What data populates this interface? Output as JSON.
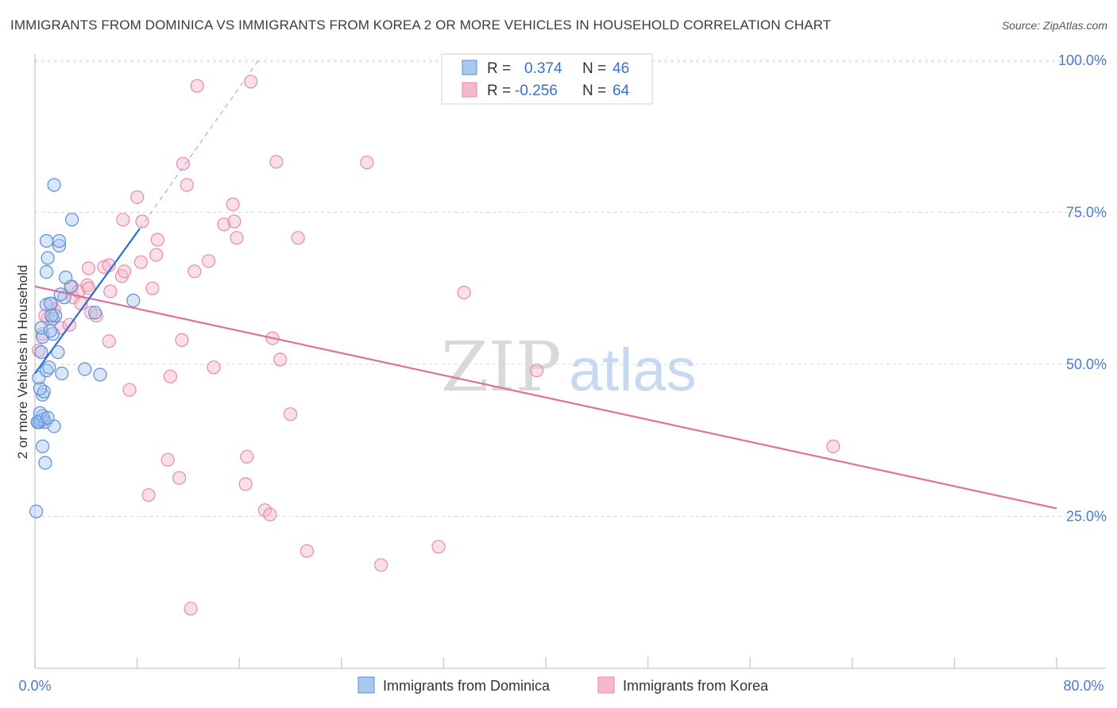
{
  "title": "IMMIGRANTS FROM DOMINICA VS IMMIGRANTS FROM KOREA 2 OR MORE VEHICLES IN HOUSEHOLD CORRELATION CHART",
  "source": "Source: ZipAtlas.com",
  "watermark": {
    "zip": "ZIP",
    "atlas": "atlas"
  },
  "colors": {
    "dominica_fill": "#a8c8f0",
    "dominica_stroke": "#5b8fd8",
    "dominica_line": "#2b6fd6",
    "korea_fill": "#f6b8cb",
    "korea_stroke": "#e88aa8",
    "korea_line": "#e07098",
    "tick_text": "#4a7bd0",
    "grid": "#d8d8d8"
  },
  "stats_legend": [
    {
      "r_label": "R =",
      "r_value": "0.374",
      "n_label": "N =",
      "n_value": "46",
      "series": "dominica"
    },
    {
      "r_label": "R =",
      "r_value": "-0.256",
      "n_label": "N =",
      "n_value": "64",
      "series": "korea"
    }
  ],
  "chart_data": {
    "type": "scatter",
    "title": "IMMIGRANTS FROM DOMINICA VS IMMIGRANTS FROM KOREA 2 OR MORE VEHICLES IN HOUSEHOLD CORRELATION CHART",
    "xlabel": "",
    "ylabel": "2 or more Vehicles in Household",
    "xlim": [
      0,
      80
    ],
    "ylim": [
      0,
      105
    ],
    "x_tick_labels": [
      "0.0%",
      "80.0%"
    ],
    "y_ticks": [
      25,
      50,
      75,
      100
    ],
    "y_tick_labels": [
      "25.0%",
      "50.0%",
      "75.0%",
      "100.0%"
    ],
    "grid": true,
    "legend_position": "bottom",
    "series": [
      {
        "name": "Immigrants from Dominica",
        "color": "#5b8fd8",
        "trend": {
          "x": [
            0,
            8.2
          ],
          "y": [
            48.5,
            72.3
          ],
          "dashed_extension": {
            "x": [
              8.2,
              17.5
            ],
            "y": [
              72.3,
              100
            ]
          }
        },
        "points": [
          [
            0.1,
            25.8
          ],
          [
            0.8,
            33.8
          ],
          [
            0.6,
            36.5
          ],
          [
            0.3,
            40.5
          ],
          [
            0.4,
            40.5
          ],
          [
            0.5,
            40.8
          ],
          [
            0.7,
            41.0
          ],
          [
            0.8,
            40.5
          ],
          [
            1.5,
            39.8
          ],
          [
            0.6,
            41.5
          ],
          [
            0.4,
            42.0
          ],
          [
            0.6,
            45.0
          ],
          [
            0.7,
            45.5
          ],
          [
            0.4,
            46.0
          ],
          [
            0.3,
            47.8
          ],
          [
            0.9,
            49.0
          ],
          [
            1.1,
            49.5
          ],
          [
            2.1,
            48.5
          ],
          [
            5.1,
            48.3
          ],
          [
            3.9,
            49.2
          ],
          [
            1.8,
            52.0
          ],
          [
            0.6,
            54.5
          ],
          [
            1.4,
            55.0
          ],
          [
            0.5,
            56.0
          ],
          [
            1.4,
            57.5
          ],
          [
            1.6,
            58.0
          ],
          [
            1.3,
            58.0
          ],
          [
            0.9,
            59.8
          ],
          [
            1.2,
            60.0
          ],
          [
            2.3,
            61.0
          ],
          [
            4.7,
            58.5
          ],
          [
            7.7,
            60.5
          ],
          [
            2.8,
            62.8
          ],
          [
            2.4,
            64.3
          ],
          [
            0.9,
            65.2
          ],
          [
            1.0,
            67.5
          ],
          [
            1.9,
            69.5
          ],
          [
            0.9,
            70.3
          ],
          [
            1.9,
            70.3
          ],
          [
            2.9,
            73.8
          ],
          [
            1.5,
            79.5
          ],
          [
            0.2,
            40.5
          ],
          [
            1.0,
            41.2
          ],
          [
            0.5,
            52.0
          ],
          [
            1.2,
            55.5
          ],
          [
            2.0,
            61.5
          ]
        ]
      },
      {
        "name": "Immigrants from Korea",
        "color": "#e88aa8",
        "trend": {
          "x": [
            0,
            80
          ],
          "y": [
            62.8,
            26.3
          ]
        },
        "points": [
          [
            0.3,
            52.3
          ],
          [
            0.6,
            55.0
          ],
          [
            1.0,
            57.5
          ],
          [
            0.8,
            58.0
          ],
          [
            1.5,
            59.0
          ],
          [
            1.3,
            60.0
          ],
          [
            2.0,
            56.0
          ],
          [
            2.7,
            56.5
          ],
          [
            3.0,
            61.0
          ],
          [
            2.9,
            62.8
          ],
          [
            3.4,
            62.0
          ],
          [
            3.6,
            60.0
          ],
          [
            4.1,
            63.0
          ],
          [
            4.4,
            58.5
          ],
          [
            4.8,
            58.0
          ],
          [
            4.2,
            62.5
          ],
          [
            4.2,
            65.8
          ],
          [
            5.4,
            66.0
          ],
          [
            5.8,
            66.3
          ],
          [
            5.9,
            62.0
          ],
          [
            6.8,
            64.5
          ],
          [
            7.0,
            65.3
          ],
          [
            8.3,
            66.8
          ],
          [
            9.2,
            62.5
          ],
          [
            9.5,
            68.0
          ],
          [
            9.6,
            70.5
          ],
          [
            8.4,
            73.5
          ],
          [
            6.9,
            73.8
          ],
          [
            8.0,
            77.5
          ],
          [
            11.9,
            79.5
          ],
          [
            11.6,
            83.0
          ],
          [
            12.5,
            65.3
          ],
          [
            13.6,
            67.0
          ],
          [
            14.8,
            73.0
          ],
          [
            15.5,
            76.3
          ],
          [
            15.6,
            73.5
          ],
          [
            15.8,
            70.8
          ],
          [
            20.6,
            70.8
          ],
          [
            18.9,
            83.3
          ],
          [
            26.0,
            83.2
          ],
          [
            12.7,
            95.8
          ],
          [
            16.9,
            96.5
          ],
          [
            5.8,
            53.8
          ],
          [
            7.4,
            45.8
          ],
          [
            10.6,
            48.0
          ],
          [
            11.5,
            54.0
          ],
          [
            14.0,
            49.5
          ],
          [
            18.6,
            54.3
          ],
          [
            19.2,
            50.8
          ],
          [
            20.0,
            41.8
          ],
          [
            10.4,
            34.3
          ],
          [
            11.3,
            31.3
          ],
          [
            8.9,
            28.5
          ],
          [
            16.6,
            34.8
          ],
          [
            16.5,
            30.3
          ],
          [
            18.0,
            26.0
          ],
          [
            18.4,
            25.3
          ],
          [
            21.3,
            19.3
          ],
          [
            27.1,
            17.0
          ],
          [
            31.6,
            20.0
          ],
          [
            33.6,
            61.8
          ],
          [
            39.3,
            49.0
          ],
          [
            62.5,
            36.5
          ],
          [
            12.2,
            9.8
          ]
        ]
      }
    ]
  },
  "bottom_legend": [
    {
      "label": "Immigrants from Dominica",
      "series": "dominica"
    },
    {
      "label": "Immigrants from Korea",
      "series": "korea"
    }
  ]
}
